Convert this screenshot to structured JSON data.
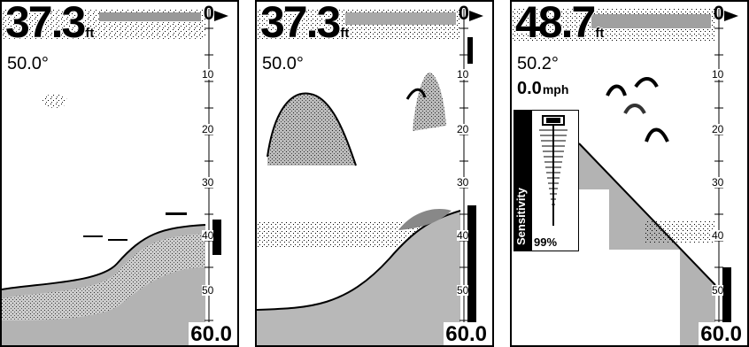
{
  "panels": [
    {
      "depth": "37.3",
      "unit": "ft",
      "temp": "50.0°",
      "scale": {
        "top": "0",
        "labels": [
          "10",
          "20",
          "30",
          "40",
          "50"
        ],
        "bottom": "60.0"
      }
    },
    {
      "depth": "37.3",
      "unit": "ft",
      "temp": "50.0°",
      "scale": {
        "top": "0",
        "labels": [
          "10",
          "20",
          "30",
          "40",
          "50"
        ],
        "bottom": "60.0"
      }
    },
    {
      "depth": "48.7",
      "unit": "ft",
      "temp": "50.2°",
      "speed": "0.0",
      "speed_unit": "mph",
      "scale": {
        "top": "0",
        "labels": [
          "10",
          "20",
          "30",
          "40",
          "50"
        ],
        "bottom": "60.0"
      },
      "sensitivity": {
        "label": "Sensitivity",
        "percent": "99%",
        "level": 0.99
      }
    }
  ]
}
